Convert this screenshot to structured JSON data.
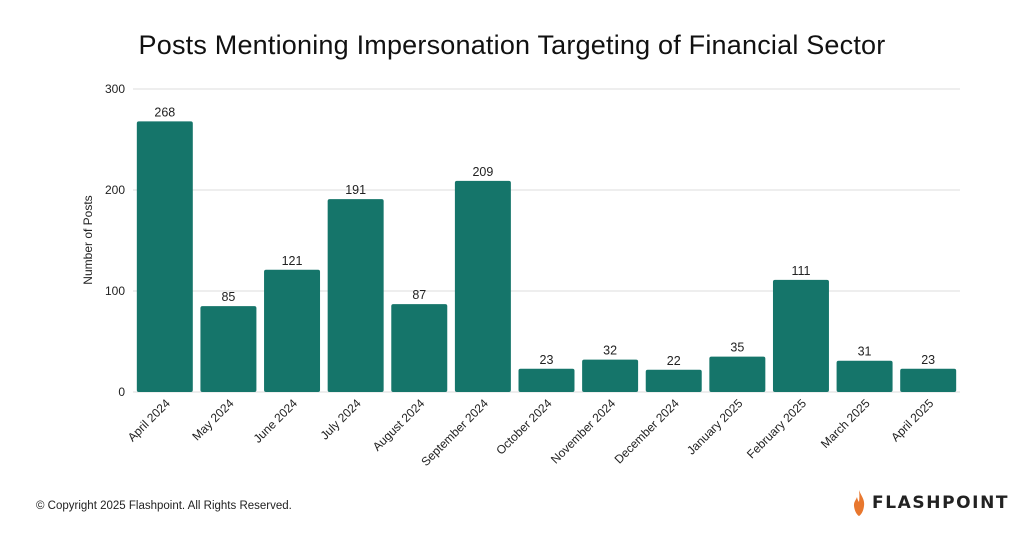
{
  "chart_data": {
    "type": "bar",
    "title": "Posts Mentioning Impersonation Targeting of Financial Sector",
    "xlabel": "",
    "ylabel": "Number of Posts",
    "ylim": [
      0,
      300
    ],
    "yticks": [
      0,
      100,
      200,
      300
    ],
    "grid": true,
    "legend": "none",
    "categories": [
      "April 2024",
      "May 2024",
      "June 2024",
      "July 2024",
      "August 2024",
      "September 2024",
      "October 2024",
      "November 2024",
      "December 2024",
      "January 2025",
      "February 2025",
      "March 2025",
      "April 2025"
    ],
    "values": [
      268,
      85,
      121,
      191,
      87,
      209,
      23,
      32,
      22,
      35,
      111,
      31,
      23
    ],
    "data_labels": [
      "268",
      "85",
      "121",
      "191",
      "87",
      "209",
      "23",
      "32",
      "22",
      "35",
      "111",
      "31",
      "23"
    ],
    "bar_color": "#15756a",
    "grid_color": "#dcdcdc"
  },
  "footer": {
    "copyright": "© Copyright 2025 Flashpoint. All Rights Reserved.",
    "brand": "FLASHPOINT",
    "brand_flame_color": "#e8772e"
  }
}
